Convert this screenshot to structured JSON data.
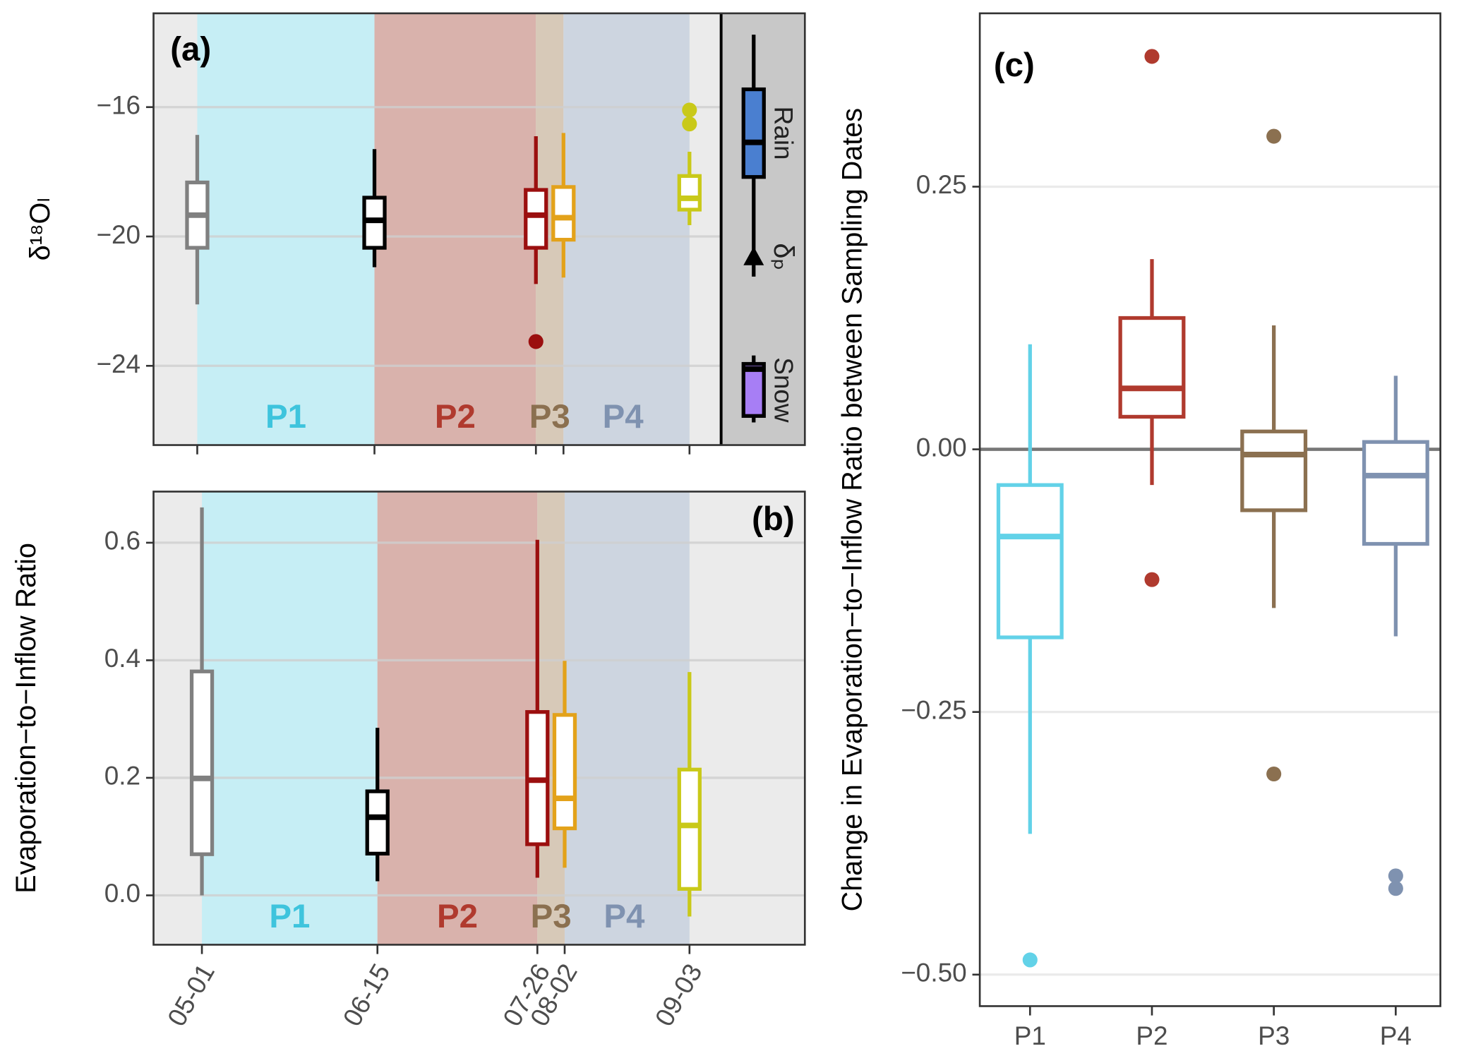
{
  "chart_data": [
    {
      "type": "box",
      "panel_label": "(a)",
      "ylabel": "δ¹⁸Oₗ",
      "categories": [
        "05-01",
        "06-15",
        "07-26",
        "08-02",
        "09-03"
      ],
      "show_xticklabels": false,
      "ylim": [
        -26.45,
        -13.1
      ],
      "yticks": [
        {
          "value": -16,
          "label": "−16"
        },
        {
          "value": -20,
          "label": "−20"
        },
        {
          "value": -24,
          "label": "−24"
        }
      ],
      "grid": true,
      "periods": [
        {
          "name": "P1",
          "start": "05-01",
          "end": "06-15",
          "color": "#c6eef5",
          "label_color": "#3ec4dd"
        },
        {
          "name": "P2",
          "start": "06-15",
          "end": "07-26",
          "color": "#d9b2ac",
          "label_color": "#b03a2e"
        },
        {
          "name": "P3",
          "start": "07-26",
          "end": "08-02",
          "color": "#d7c9b8",
          "label_color": "#8b7050"
        },
        {
          "name": "P4",
          "start": "08-02",
          "end": "09-03",
          "color": "#cdd5e0",
          "label_color": "#7f92b0"
        }
      ],
      "boxes": [
        {
          "color": "#808080",
          "whislo": -22.1,
          "q1": -20.35,
          "med": -19.34,
          "q3": -18.33,
          "whishi": -16.86,
          "fliers": []
        },
        {
          "color": "#000000",
          "whislo": -20.95,
          "q1": -20.35,
          "med": -19.5,
          "q3": -18.8,
          "whishi": -17.3,
          "fliers": []
        },
        {
          "color": "#9b0f0f",
          "whislo": -21.47,
          "q1": -20.35,
          "med": -19.34,
          "q3": -18.56,
          "whishi": -16.9,
          "fliers": [
            -23.25
          ]
        },
        {
          "color": "#e3a21a",
          "whislo": -21.27,
          "q1": -20.1,
          "med": -19.42,
          "q3": -18.47,
          "whishi": -16.8,
          "fliers": []
        },
        {
          "color": "#c9c919",
          "whislo": -19.65,
          "q1": -19.17,
          "med": -18.82,
          "q3": -18.13,
          "whishi": -17.38,
          "fliers": [
            -16.09,
            -16.52
          ]
        }
      ],
      "legend": {
        "items": [
          {
            "name": "Rain",
            "color": "#4a7fd0",
            "whislo": -21.24,
            "q1": -18.16,
            "med": -17.09,
            "q3": -15.45,
            "whishi": -13.76
          },
          {
            "name": "Snow",
            "color": "#a77ef5",
            "whislo": -25.75,
            "q1": -25.55,
            "med": -24.1,
            "q3": -23.94,
            "whishi": -23.68
          }
        ],
        "marker": {
          "name": "δₚ",
          "value": -20.63
        }
      }
    },
    {
      "type": "box",
      "panel_label": "(b)",
      "ylabel": "Evaporation−to−Inflow Ratio",
      "categories": [
        "05-01",
        "06-15",
        "07-26",
        "08-02",
        "09-03"
      ],
      "show_xticklabels": true,
      "ylim": [
        -0.084,
        0.687
      ],
      "yticks": [
        {
          "value": 0,
          "label": "0.0"
        },
        0.2,
        0.4,
        0.6
      ],
      "grid": true,
      "periods": [
        {
          "name": "P1",
          "start": "05-01",
          "end": "06-15",
          "color": "#c6eef5",
          "label_color": "#3ec4dd"
        },
        {
          "name": "P2",
          "start": "06-15",
          "end": "07-26",
          "color": "#d9b2ac",
          "label_color": "#b03a2e"
        },
        {
          "name": "P3",
          "start": "07-26",
          "end": "08-02",
          "color": "#d7c9b8",
          "label_color": "#8b7050"
        },
        {
          "name": "P4",
          "start": "08-02",
          "end": "09-03",
          "color": "#cdd5e0",
          "label_color": "#7f92b0"
        }
      ],
      "boxes": [
        {
          "color": "#808080",
          "whislo": 0.0,
          "q1": 0.07,
          "med": 0.199,
          "q3": 0.381,
          "whishi": 0.66,
          "fliers": []
        },
        {
          "color": "#000000",
          "whislo": 0.024,
          "q1": 0.071,
          "med": 0.133,
          "q3": 0.177,
          "whishi": 0.285,
          "fliers": []
        },
        {
          "color": "#9b0f0f",
          "whislo": 0.03,
          "q1": 0.087,
          "med": 0.196,
          "q3": 0.312,
          "whishi": 0.605,
          "fliers": []
        },
        {
          "color": "#e3a21a",
          "whislo": 0.047,
          "q1": 0.114,
          "med": 0.165,
          "q3": 0.307,
          "whishi": 0.399,
          "fliers": []
        },
        {
          "color": "#c9c919",
          "whislo": -0.036,
          "q1": 0.011,
          "med": 0.119,
          "q3": 0.214,
          "whishi": 0.38,
          "fliers": []
        }
      ]
    },
    {
      "type": "box",
      "panel_label": "(c)",
      "ylabel": "Change in Evaporation−to−Inflow Ratio between Sampling Dates",
      "categories": [
        "P1",
        "P2",
        "P3",
        "P4"
      ],
      "show_xticklabels": true,
      "ylim": [
        -0.53,
        0.415
      ],
      "yticks": [
        {
          "value": -0.5,
          "label": "−0.50"
        },
        {
          "value": -0.25,
          "label": "−0.25"
        },
        {
          "value": 0,
          "label": "0.00"
        },
        0.25
      ],
      "grid": true,
      "hline": 0,
      "boxes": [
        {
          "color": "#62d2e8",
          "whislo": -0.366,
          "q1": -0.179,
          "med": -0.083,
          "q3": -0.034,
          "whishi": 0.1,
          "fliers": [
            -0.486
          ]
        },
        {
          "color": "#b03a2e",
          "whislo": -0.034,
          "q1": 0.031,
          "med": 0.058,
          "q3": 0.125,
          "whishi": 0.181,
          "fliers": [
            0.374,
            -0.124
          ]
        },
        {
          "color": "#8b7050",
          "whislo": -0.151,
          "q1": -0.058,
          "med": -0.005,
          "q3": 0.017,
          "whishi": 0.118,
          "fliers": [
            0.298,
            -0.309
          ]
        },
        {
          "color": "#7f92b0",
          "whislo": -0.178,
          "q1": -0.09,
          "med": -0.025,
          "q3": 0.007,
          "whishi": 0.07,
          "fliers": [
            -0.406,
            -0.418
          ]
        }
      ]
    }
  ]
}
